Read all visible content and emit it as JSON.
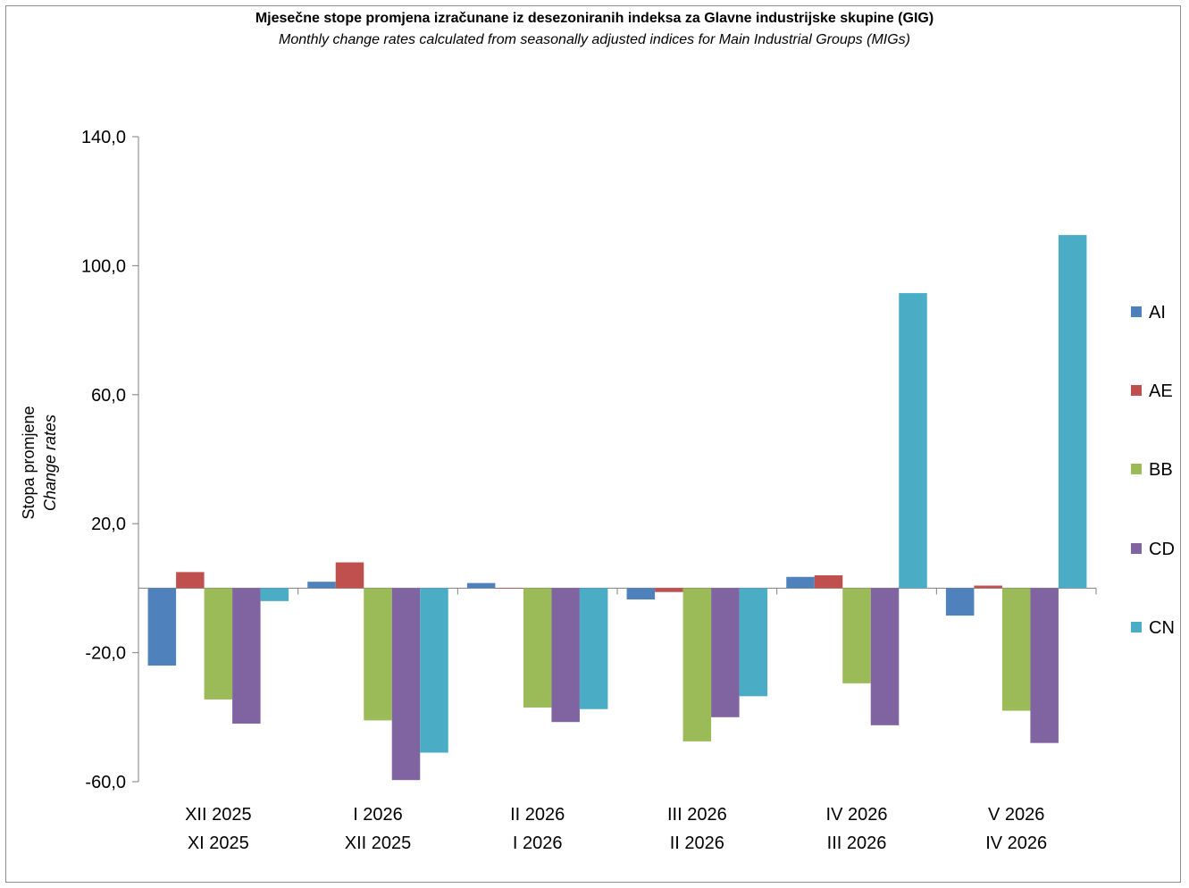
{
  "title": "Mjesečne stope promjena izračunane iz desezoniranih indeksa za Glavne industrijske skupine (GIG)",
  "subtitle": "Monthly change rates calculated from seasonally adjusted indices for Main Industrial Groups (MIGs)",
  "chart_data": {
    "type": "bar",
    "ylabel": "Stopa promjene",
    "ylabel_en": "Change rates",
    "ylim": [
      -60,
      140
    ],
    "yticks": [
      -60,
      -20,
      20,
      60,
      100,
      140
    ],
    "ytick_labels": [
      "-60,0",
      "-20,0",
      "20,0",
      "60,0",
      "100,0",
      "140,0"
    ],
    "grid": false,
    "legend_position": "right",
    "categories": [
      {
        "line1": "XII 2025",
        "line2": "XI 2025"
      },
      {
        "line1": "I 2026",
        "line2": "XII 2025"
      },
      {
        "line1": "II 2026",
        "line2": "I 2026"
      },
      {
        "line1": "III 2026",
        "line2": "II 2026"
      },
      {
        "line1": "IV 2026",
        "line2": "III 2026"
      },
      {
        "line1": "V 2026",
        "line2": "IV 2026"
      }
    ],
    "series": [
      {
        "name": "AI",
        "color": "#4f81bd",
        "values": [
          -24.0,
          2.0,
          1.6,
          -3.5,
          3.5,
          -8.5
        ]
      },
      {
        "name": "AE",
        "color": "#c0504d",
        "values": [
          5.0,
          8.0,
          0.0,
          -1.2,
          4.0,
          0.8
        ]
      },
      {
        "name": "BB",
        "color": "#9bbb59",
        "values": [
          -34.5,
          -41.0,
          -37.0,
          -47.5,
          -29.5,
          -38.0
        ]
      },
      {
        "name": "CD",
        "color": "#8064a2",
        "values": [
          -42.0,
          -59.5,
          -41.5,
          -40.0,
          -42.5,
          -48.0
        ]
      },
      {
        "name": "CN",
        "color": "#4bacc6",
        "values": [
          -4.0,
          -51.0,
          -37.5,
          -33.5,
          91.5,
          109.5
        ]
      }
    ]
  }
}
